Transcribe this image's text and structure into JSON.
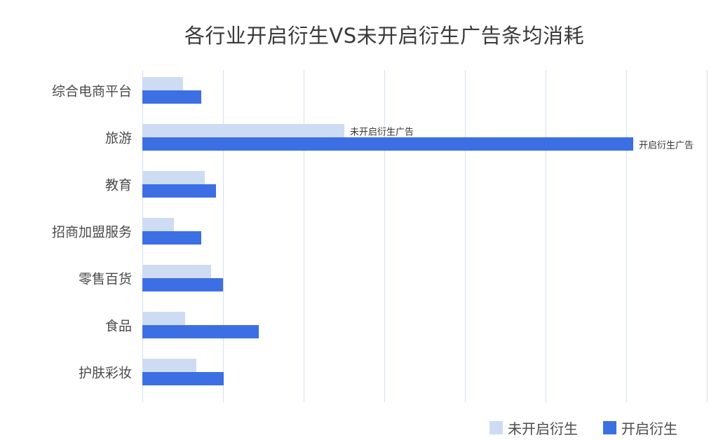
{
  "chart_data": {
    "type": "bar",
    "orientation": "horizontal",
    "title": "各行业开启衍生VS未开启衍生广告条均消耗",
    "xlabel": "",
    "ylabel": "",
    "x_axis_tick_labels_visible": false,
    "grid": true,
    "gridline_unit_note": "values in gridline units (each vertical gridline = 1 unit); no numeric axis labels shown",
    "xlim": [
      0,
      7
    ],
    "legend_position": "bottom-right",
    "categories": [
      "综合电商平台",
      "旅游",
      "教育",
      "招商加盟服务",
      "零售百货",
      "食品",
      "护肤彩妆"
    ],
    "series": [
      {
        "name": "未开启衍生",
        "color": "#cddcf3",
        "values": [
          0.5,
          2.5,
          0.77,
          0.39,
          0.85,
          0.53,
          0.67
        ]
      },
      {
        "name": "开启衍生",
        "color": "#3c6fe3",
        "values": [
          0.73,
          6.09,
          0.91,
          0.73,
          1.0,
          1.44,
          1.01
        ]
      }
    ],
    "annotations": [
      {
        "category": "旅游",
        "series": "未开启衍生",
        "text": "未开启衍生广告"
      },
      {
        "category": "旅游",
        "series": "开启衍生",
        "text": "开启衍生广告"
      }
    ]
  },
  "title": "各行业开启衍生VS未开启衍生广告条均消耗",
  "legend": [
    {
      "label": "未开启衍生",
      "color": "#cddcf3"
    },
    {
      "label": "开启衍生",
      "color": "#3c6fe3"
    }
  ],
  "annotations": {
    "travel_light": "未开启衍生广告",
    "travel_dark": "开启衍生广告"
  }
}
